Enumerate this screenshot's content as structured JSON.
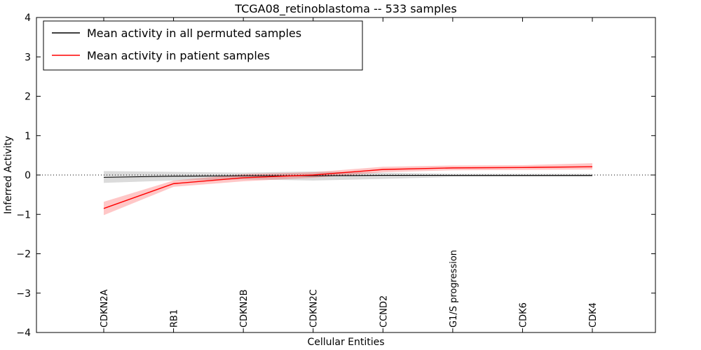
{
  "chart_data": {
    "type": "line",
    "title": "TCGA08_retinoblastoma -- 533 samples",
    "xlabel": "Cellular Entities",
    "ylabel": "Inferred Activity",
    "ylim": [
      -4,
      4
    ],
    "yticks": [
      -4,
      -3,
      -2,
      -1,
      0,
      1,
      2,
      3,
      4
    ],
    "grid": false,
    "legend_position": "upper left",
    "zero_line": {
      "show": true,
      "style": "dotted",
      "color": "#000000"
    },
    "categories": [
      "CDKN2A",
      "RB1",
      "CDKN2B",
      "CDKN2C",
      "CCND2",
      "G1/S progression",
      "CDK6",
      "CDK4"
    ],
    "series": [
      {
        "name": "Mean activity in all permuted samples",
        "color": "#000000",
        "band_color": "#000000",
        "band_opacity": 0.14,
        "values": [
          -0.06,
          -0.03,
          -0.02,
          -0.02,
          -0.01,
          -0.01,
          -0.01,
          -0.01
        ],
        "band_upper": [
          0.1,
          0.08,
          0.06,
          0.09,
          0.06,
          0.03,
          0.03,
          0.03
        ],
        "band_lower": [
          -0.2,
          -0.14,
          -0.11,
          -0.14,
          -0.1,
          -0.05,
          -0.05,
          -0.05
        ]
      },
      {
        "name": "Mean activity in patient samples",
        "color": "#ff0000",
        "band_color": "#ff0000",
        "band_opacity": 0.22,
        "values": [
          -0.85,
          -0.22,
          -0.07,
          0.0,
          0.14,
          0.18,
          0.19,
          0.21
        ],
        "band_upper": [
          -0.68,
          -0.14,
          0.02,
          0.07,
          0.21,
          0.24,
          0.25,
          0.3
        ],
        "band_lower": [
          -1.02,
          -0.3,
          -0.16,
          -0.07,
          0.07,
          0.12,
          0.13,
          0.14
        ]
      }
    ]
  }
}
